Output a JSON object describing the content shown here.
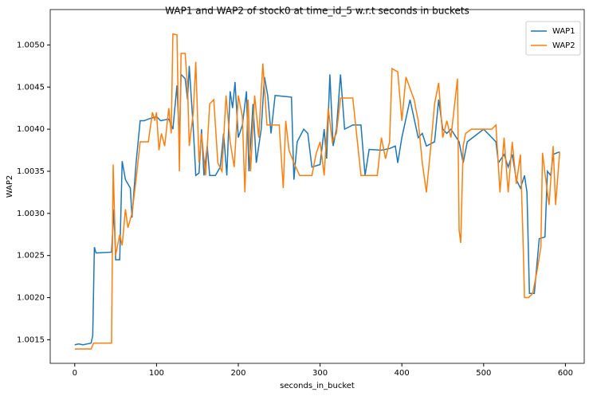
{
  "chart_data": {
    "type": "line",
    "title": "WAP1 and WAP2 of stock0 at time_id_5 w.r.t seconds in buckets",
    "x_label": "seconds_in_bucket",
    "y_label": "WAP2",
    "xlim": [
      -30,
      623
    ],
    "xticks": [
      0,
      100,
      200,
      300,
      400,
      500,
      600
    ],
    "ylim": [
      1.00122,
      1.00542
    ],
    "yticks": [
      1.0015,
      {
        "value": 1.002,
        "label": "1.0020"
      },
      {
        "value": 1.0025,
        "label": "1.0025"
      },
      {
        "value": 1.003,
        "label": "1.0030"
      },
      1.0035,
      {
        "value": 1.004,
        "label": "1.0040"
      },
      1.0045,
      {
        "value": 1.005,
        "label": "1.0050"
      }
    ],
    "legend": "upper right",
    "series": [
      {
        "name": "WAP1",
        "color": "#1f77b4",
        "x": [
          0,
          5,
          10,
          15,
          20,
          22,
          24,
          26,
          45,
          48,
          50,
          55,
          58,
          62,
          68,
          70,
          75,
          80,
          85,
          90,
          100,
          105,
          115,
          120,
          125,
          128,
          130,
          135,
          138,
          140,
          145,
          148,
          152,
          155,
          158,
          162,
          165,
          172,
          178,
          182,
          186,
          190,
          193,
          196,
          200,
          205,
          210,
          213,
          218,
          222,
          228,
          232,
          236,
          240,
          245,
          265,
          268,
          272,
          280,
          285,
          290,
          300,
          305,
          308,
          312,
          316,
          320,
          325,
          330,
          340,
          350,
          355,
          360,
          375,
          385,
          392,
          395,
          400,
          410,
          420,
          425,
          430,
          440,
          445,
          450,
          455,
          460,
          470,
          475,
          480,
          500,
          515,
          518,
          525,
          530,
          535,
          540,
          545,
          550,
          553,
          556,
          562,
          568,
          575,
          578,
          582,
          585,
          590,
          593
        ],
        "values": [
          1.00144,
          1.00145,
          1.00144,
          1.00145,
          1.00146,
          1.00155,
          1.0026,
          1.00253,
          1.00254,
          1.00305,
          1.00245,
          1.00245,
          1.00362,
          1.0034,
          1.0033,
          1.00295,
          1.0036,
          1.0041,
          1.0041,
          1.00412,
          1.00415,
          1.0041,
          1.00412,
          1.004,
          1.00452,
          1.00385,
          1.00465,
          1.0046,
          1.00435,
          1.00475,
          1.004,
          1.00345,
          1.00348,
          1.004,
          1.00345,
          1.0038,
          1.00345,
          1.00345,
          1.00355,
          1.00395,
          1.00345,
          1.00445,
          1.00425,
          1.00456,
          1.0039,
          1.00405,
          1.00445,
          1.0035,
          1.0043,
          1.0036,
          1.004,
          1.00462,
          1.0044,
          1.00395,
          1.0044,
          1.00438,
          1.0034,
          1.00385,
          1.004,
          1.00395,
          1.00355,
          1.00358,
          1.004,
          1.00365,
          1.00465,
          1.0038,
          1.004,
          1.00465,
          1.004,
          1.00405,
          1.00405,
          1.00345,
          1.00376,
          1.00375,
          1.00377,
          1.0038,
          1.0036,
          1.0039,
          1.00435,
          1.0039,
          1.00395,
          1.0038,
          1.00385,
          1.00435,
          1.004,
          1.00395,
          1.004,
          1.00385,
          1.0036,
          1.00385,
          1.004,
          1.00385,
          1.0036,
          1.0037,
          1.00355,
          1.0037,
          1.0034,
          1.0033,
          1.00345,
          1.00325,
          1.00205,
          1.00205,
          1.0027,
          1.00272,
          1.0035,
          1.00345,
          1.0037,
          1.00372,
          1.00373
        ]
      },
      {
        "name": "WAP2",
        "color": "#ff7f0e",
        "x": [
          0,
          20,
          23,
          45,
          47,
          50,
          55,
          58,
          62,
          65,
          70,
          75,
          80,
          90,
          95,
          98,
          100,
          103,
          106,
          110,
          115,
          118,
          120,
          125,
          128,
          130,
          135,
          138,
          140,
          145,
          148,
          152,
          155,
          160,
          165,
          170,
          175,
          180,
          185,
          190,
          195,
          200,
          205,
          208,
          212,
          215,
          220,
          225,
          230,
          235,
          240,
          250,
          255,
          258,
          262,
          268,
          275,
          290,
          295,
          300,
          305,
          310,
          315,
          320,
          325,
          340,
          350,
          370,
          375,
          380,
          385,
          388,
          395,
          400,
          405,
          415,
          420,
          425,
          430,
          435,
          440,
          445,
          450,
          455,
          460,
          468,
          470,
          472,
          475,
          478,
          485,
          490,
          500,
          510,
          515,
          520,
          525,
          530,
          535,
          540,
          545,
          548,
          550,
          555,
          560,
          565,
          570,
          572,
          576,
          580,
          585,
          588,
          593
        ],
        "values": [
          1.00139,
          1.00139,
          1.00146,
          1.00146,
          1.00358,
          1.0025,
          1.00275,
          1.00262,
          1.00305,
          1.00283,
          1.003,
          1.0034,
          1.00385,
          1.00385,
          1.0042,
          1.0041,
          1.0042,
          1.00375,
          1.00395,
          1.0038,
          1.00425,
          1.00395,
          1.00513,
          1.00512,
          1.0035,
          1.0049,
          1.0049,
          1.0045,
          1.0038,
          1.0042,
          1.0048,
          1.0036,
          1.00395,
          1.00345,
          1.0043,
          1.00435,
          1.0036,
          1.0035,
          1.0044,
          1.00385,
          1.00355,
          1.0044,
          1.00415,
          1.00325,
          1.00435,
          1.0035,
          1.0044,
          1.0039,
          1.00478,
          1.00405,
          1.00405,
          1.00405,
          1.0033,
          1.0041,
          1.00375,
          1.0036,
          1.00345,
          1.00345,
          1.0037,
          1.00385,
          1.00345,
          1.00425,
          1.00385,
          1.00395,
          1.00437,
          1.00437,
          1.00345,
          1.00345,
          1.0039,
          1.00365,
          1.00385,
          1.00472,
          1.00468,
          1.0041,
          1.00462,
          1.00435,
          1.0041,
          1.0036,
          1.00325,
          1.00375,
          1.0043,
          1.00455,
          1.0039,
          1.0041,
          1.0039,
          1.0046,
          1.0028,
          1.00265,
          1.0038,
          1.00395,
          1.004,
          1.004,
          1.004,
          1.004,
          1.00405,
          1.00325,
          1.0039,
          1.00325,
          1.00385,
          1.00335,
          1.0037,
          1.00275,
          1.002,
          1.002,
          1.00205,
          1.0023,
          1.0026,
          1.00372,
          1.0034,
          1.0031,
          1.0038,
          1.0031,
          1.00373
        ]
      }
    ]
  }
}
